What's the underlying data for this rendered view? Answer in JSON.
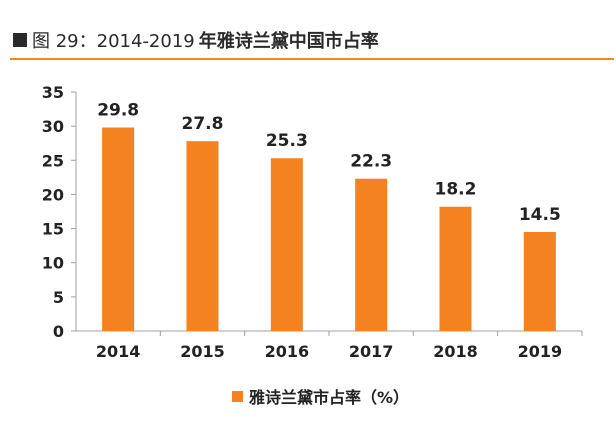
{
  "header": {
    "figure_label": "图 29：2014-2019",
    "title": "年雅诗兰黛中国市占率"
  },
  "colors": {
    "bar": "#f58220",
    "rule": "#f08c1e"
  },
  "chart_data": {
    "type": "bar",
    "categories": [
      "2014",
      "2015",
      "2016",
      "2017",
      "2018",
      "2019"
    ],
    "series": [
      {
        "name": "雅诗兰黛市占率（%）",
        "values": [
          29.8,
          27.8,
          25.3,
          22.3,
          18.2,
          14.5
        ]
      }
    ],
    "data_labels": [
      "29.8",
      "27.8",
      "25.3",
      "22.3",
      "18.2",
      "14.5"
    ],
    "y_ticks": [
      "0",
      "5",
      "10",
      "15",
      "20",
      "25",
      "30",
      "35"
    ],
    "ylim": [
      0,
      35
    ],
    "grid": false,
    "legend_position": "bottom"
  }
}
